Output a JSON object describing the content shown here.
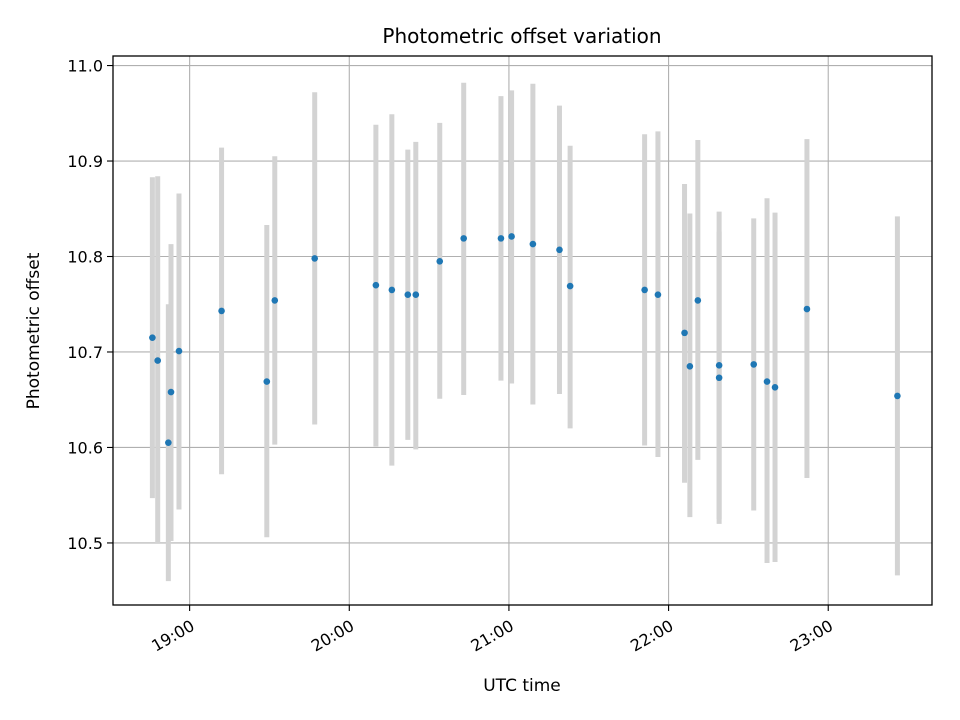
{
  "chart_data": {
    "type": "scatter",
    "title": "Photometric offset variation",
    "xlabel": "UTC time",
    "ylabel": "Photometric offset",
    "grid": true,
    "x_unit": "UTC hours",
    "xlim": [
      18.52,
      23.65
    ],
    "ylim": [
      10.435,
      11.01
    ],
    "x_ticks": [
      19,
      20,
      21,
      22,
      23
    ],
    "x_tick_labels": [
      "19:00",
      "20:00",
      "21:00",
      "22:00",
      "23:00"
    ],
    "y_ticks": [
      10.5,
      10.6,
      10.7,
      10.8,
      10.9,
      11.0
    ],
    "y_tick_labels": [
      "10.5",
      "10.6",
      "10.7",
      "10.8",
      "10.9",
      "11.0"
    ],
    "colors": {
      "points": "#1f77b4",
      "errorbars": "#d3d3d3",
      "grid": "#b0b0b0"
    },
    "points": [
      {
        "x": "18:46",
        "y": 10.715,
        "ylow": 10.547,
        "yhigh": 10.883
      },
      {
        "x": "18:48",
        "y": 10.691,
        "ylow": 10.5,
        "yhigh": 10.884
      },
      {
        "x": "18:52",
        "y": 10.605,
        "ylow": 10.46,
        "yhigh": 10.75
      },
      {
        "x": "18:53",
        "y": 10.658,
        "ylow": 10.502,
        "yhigh": 10.813
      },
      {
        "x": "18:56",
        "y": 10.701,
        "ylow": 10.535,
        "yhigh": 10.866
      },
      {
        "x": "19:12",
        "y": 10.743,
        "ylow": 10.572,
        "yhigh": 10.914
      },
      {
        "x": "19:29",
        "y": 10.669,
        "ylow": 10.506,
        "yhigh": 10.833
      },
      {
        "x": "19:32",
        "y": 10.754,
        "ylow": 10.603,
        "yhigh": 10.905
      },
      {
        "x": "19:47",
        "y": 10.798,
        "ylow": 10.624,
        "yhigh": 10.972
      },
      {
        "x": "20:10",
        "y": 10.77,
        "ylow": 10.601,
        "yhigh": 10.938
      },
      {
        "x": "20:16",
        "y": 10.765,
        "ylow": 10.581,
        "yhigh": 10.949
      },
      {
        "x": "20:22",
        "y": 10.76,
        "ylow": 10.608,
        "yhigh": 10.912
      },
      {
        "x": "20:25",
        "y": 10.76,
        "ylow": 10.598,
        "yhigh": 10.92
      },
      {
        "x": "20:34",
        "y": 10.795,
        "ylow": 10.651,
        "yhigh": 10.94
      },
      {
        "x": "20:43",
        "y": 10.819,
        "ylow": 10.655,
        "yhigh": 10.982
      },
      {
        "x": "20:57",
        "y": 10.819,
        "ylow": 10.67,
        "yhigh": 10.968
      },
      {
        "x": "21:01",
        "y": 10.821,
        "ylow": 10.667,
        "yhigh": 10.974
      },
      {
        "x": "21:09",
        "y": 10.813,
        "ylow": 10.645,
        "yhigh": 10.981
      },
      {
        "x": "21:19",
        "y": 10.807,
        "ylow": 10.656,
        "yhigh": 10.958
      },
      {
        "x": "21:23",
        "y": 10.769,
        "ylow": 10.62,
        "yhigh": 10.916
      },
      {
        "x": "21:51",
        "y": 10.765,
        "ylow": 10.602,
        "yhigh": 10.928
      },
      {
        "x": "21:56",
        "y": 10.76,
        "ylow": 10.59,
        "yhigh": 10.931
      },
      {
        "x": "22:06",
        "y": 10.72,
        "ylow": 10.563,
        "yhigh": 10.876
      },
      {
        "x": "22:08",
        "y": 10.685,
        "ylow": 10.527,
        "yhigh": 10.845
      },
      {
        "x": "22:11",
        "y": 10.754,
        "ylow": 10.587,
        "yhigh": 10.922
      },
      {
        "x": "22:19",
        "y": 10.686,
        "ylow": 10.525,
        "yhigh": 10.847
      },
      {
        "x": "22:19",
        "y": 10.673,
        "ylow": 10.52,
        "yhigh": 10.826
      },
      {
        "x": "22:32",
        "y": 10.687,
        "ylow": 10.534,
        "yhigh": 10.84
      },
      {
        "x": "22:37",
        "y": 10.669,
        "ylow": 10.479,
        "yhigh": 10.861
      },
      {
        "x": "22:40",
        "y": 10.663,
        "ylow": 10.48,
        "yhigh": 10.846
      },
      {
        "x": "22:52",
        "y": 10.745,
        "ylow": 10.568,
        "yhigh": 10.923
      },
      {
        "x": "23:26",
        "y": 10.654,
        "ylow": 10.466,
        "yhigh": 10.842
      }
    ]
  }
}
